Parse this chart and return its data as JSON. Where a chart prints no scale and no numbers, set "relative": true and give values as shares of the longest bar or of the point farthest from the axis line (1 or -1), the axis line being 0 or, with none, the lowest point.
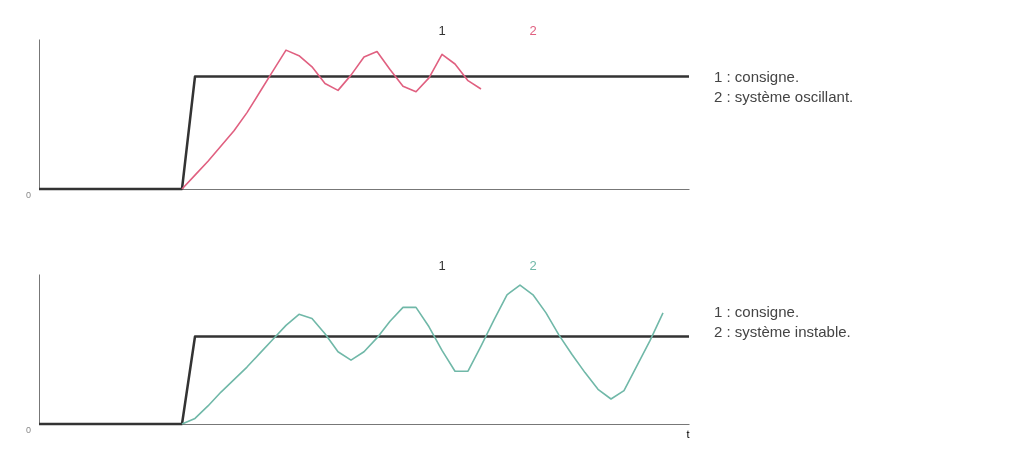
{
  "chart_data": [
    {
      "type": "line",
      "relative": true,
      "grid": false,
      "legend": false,
      "marker": "none",
      "categories": [
        null,
        null,
        null,
        null,
        null,
        null,
        null,
        null,
        null,
        null,
        null,
        null,
        null,
        null,
        null,
        null,
        null,
        null,
        null,
        null,
        null,
        null,
        null,
        null,
        null,
        null,
        null,
        null,
        null,
        null,
        null,
        null,
        null,
        null,
        null,
        null,
        null,
        null,
        null,
        null,
        null,
        null,
        null,
        null,
        null,
        null,
        null,
        null,
        null,
        null,
        null
      ],
      "annotations": [
        "0",
        "1 : consigne.",
        "2 : système oscillant."
      ],
      "series": [
        {
          "name": "1",
          "color": "#333333",
          "values": [
            0,
            0,
            0,
            0,
            0,
            0,
            0,
            0,
            0,
            0,
            0,
            0,
            0.81,
            0.81,
            0.81,
            0.81,
            0.81,
            0.81,
            0.81,
            0.81,
            0.81,
            0.81,
            0.81,
            0.81,
            0.81,
            0.81,
            0.81,
            0.81,
            0.81,
            0.81,
            0.81,
            0.81,
            0.81,
            0.81,
            0.81,
            0.81,
            0.81,
            0.81,
            0.81,
            0.81,
            0.81,
            0.81,
            0.81,
            0.81,
            0.81,
            0.81,
            0.81,
            0.81,
            0.81,
            0.81,
            0.81
          ]
        },
        {
          "name": "2",
          "color": "#e06080",
          "values": [
            null,
            null,
            null,
            null,
            null,
            null,
            null,
            null,
            null,
            null,
            null,
            0,
            0.1,
            0.2,
            0.31,
            0.42,
            0.55,
            0.7,
            0.85,
            1,
            0.96,
            0.88,
            0.76,
            0.71,
            0.82,
            0.95,
            0.99,
            0.86,
            0.74,
            0.7,
            0.8,
            0.97,
            0.9,
            0.78,
            0.72,
            null,
            null,
            null,
            null,
            null,
            null,
            null,
            null,
            null,
            null,
            null,
            null,
            null,
            null,
            null,
            null
          ]
        }
      ]
    },
    {
      "type": "line",
      "relative": true,
      "grid": false,
      "legend": false,
      "marker": "none",
      "xlabel": "t",
      "categories": [
        null,
        null,
        null,
        null,
        null,
        null,
        null,
        null,
        null,
        null,
        null,
        null,
        null,
        null,
        null,
        null,
        null,
        null,
        null,
        null,
        null,
        null,
        null,
        null,
        null,
        null,
        null,
        null,
        null,
        null,
        null,
        null,
        null,
        null,
        null,
        null,
        null,
        null,
        null,
        null,
        null,
        null,
        null,
        null,
        null,
        null,
        null,
        null,
        null,
        null,
        null
      ],
      "annotations": [
        "0",
        "1 : consigne.",
        "2 : système instable."
      ],
      "series": [
        {
          "name": "1",
          "color": "#333333",
          "values": [
            0,
            0,
            0,
            0,
            0,
            0,
            0,
            0,
            0,
            0,
            0,
            0,
            0.63,
            0.63,
            0.63,
            0.63,
            0.63,
            0.63,
            0.63,
            0.63,
            0.63,
            0.63,
            0.63,
            0.63,
            0.63,
            0.63,
            0.63,
            0.63,
            0.63,
            0.63,
            0.63,
            0.63,
            0.63,
            0.63,
            0.63,
            0.63,
            0.63,
            0.63,
            0.63,
            0.63,
            0.63,
            0.63,
            0.63,
            0.63,
            0.63,
            0.63,
            0.63,
            0.63,
            0.63,
            0.63,
            0.63
          ]
        },
        {
          "name": "2",
          "color": "#70b8a8",
          "values": [
            null,
            null,
            null,
            null,
            null,
            null,
            null,
            null,
            null,
            null,
            null,
            0,
            0.04,
            0.13,
            0.23,
            0.32,
            0.41,
            0.51,
            0.61,
            0.71,
            0.79,
            0.76,
            0.65,
            0.52,
            0.46,
            0.52,
            0.62,
            0.74,
            0.84,
            0.84,
            0.7,
            0.53,
            0.38,
            0.38,
            0.56,
            0.75,
            0.93,
            1,
            0.93,
            0.8,
            0.64,
            0.5,
            0.37,
            0.25,
            0.18,
            0.24,
            0.42,
            0.6,
            0.8,
            null,
            null
          ]
        }
      ]
    }
  ]
}
